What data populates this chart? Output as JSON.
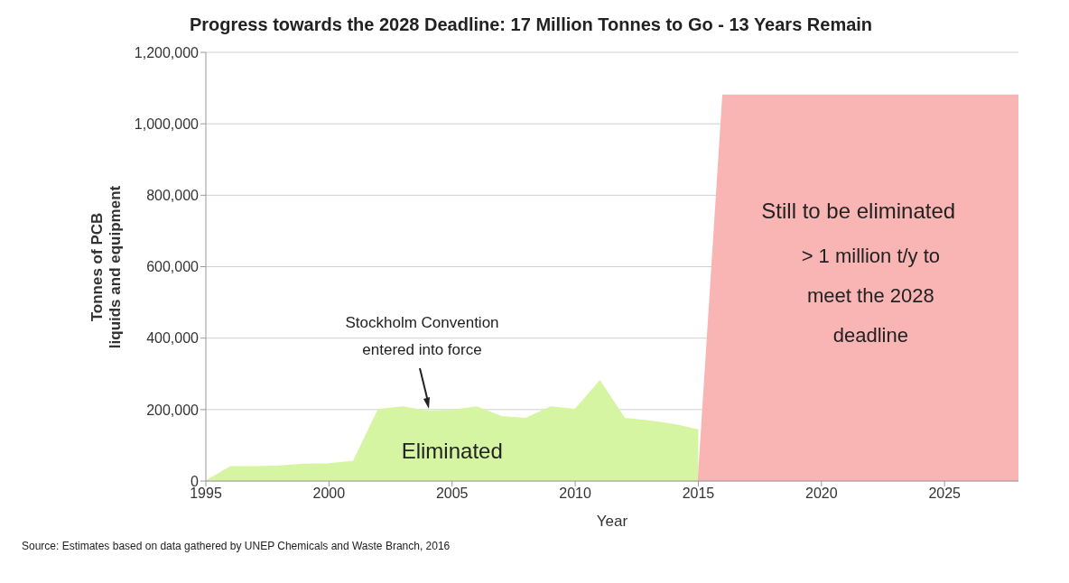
{
  "chart_data": {
    "type": "area",
    "title": "Progress towards the 2028 Deadline: 17 Million Tonnes to Go - 13 Years Remain",
    "xlabel": "Year",
    "ylabel": "Tonnes of PCB\nliquids and equipment",
    "xlim": [
      1995,
      2028
    ],
    "xticks": [
      1995,
      2000,
      2005,
      2010,
      2015,
      2020,
      2025
    ],
    "ylim": [
      0,
      1200000
    ],
    "yticks": [
      {
        "value": 0,
        "label": "0"
      },
      {
        "value": 200000,
        "label": "200,000"
      },
      {
        "value": 400000,
        "label": "400,000"
      },
      {
        "value": 600000,
        "label": "600,000"
      },
      {
        "value": 800000,
        "label": "800,000"
      },
      {
        "value": 1000000,
        "label": "1,000,000"
      },
      {
        "value": 1200000,
        "label": "1,200,000"
      }
    ],
    "grid": "y",
    "legend": false,
    "series": [
      {
        "name": "Eliminated",
        "color": "#d6f5a3",
        "x": [
          1995,
          1996,
          1997,
          1998,
          1999,
          2000,
          2001,
          2002,
          2003,
          2004,
          2005,
          2006,
          2007,
          2008,
          2009,
          2010,
          2011,
          2012,
          2013,
          2014,
          2015
        ],
        "values": [
          0,
          40000,
          40000,
          42000,
          47000,
          48000,
          55000,
          200000,
          207000,
          195000,
          198000,
          207000,
          180000,
          175000,
          207000,
          200000,
          280000,
          175000,
          168000,
          158000,
          143000
        ]
      },
      {
        "name": "Still to be eliminated",
        "color": "#f9b4b4",
        "x": [
          2015,
          2016,
          2028
        ],
        "values": [
          0,
          1080000,
          1080000
        ]
      }
    ],
    "annotations": [
      "Stockholm Convention entered into force",
      "> 1 million t/y to meet the 2028 deadline",
      "Source: Estimates based on data gathered by UNEP Chemicals and Waste Branch, 2016"
    ]
  }
}
